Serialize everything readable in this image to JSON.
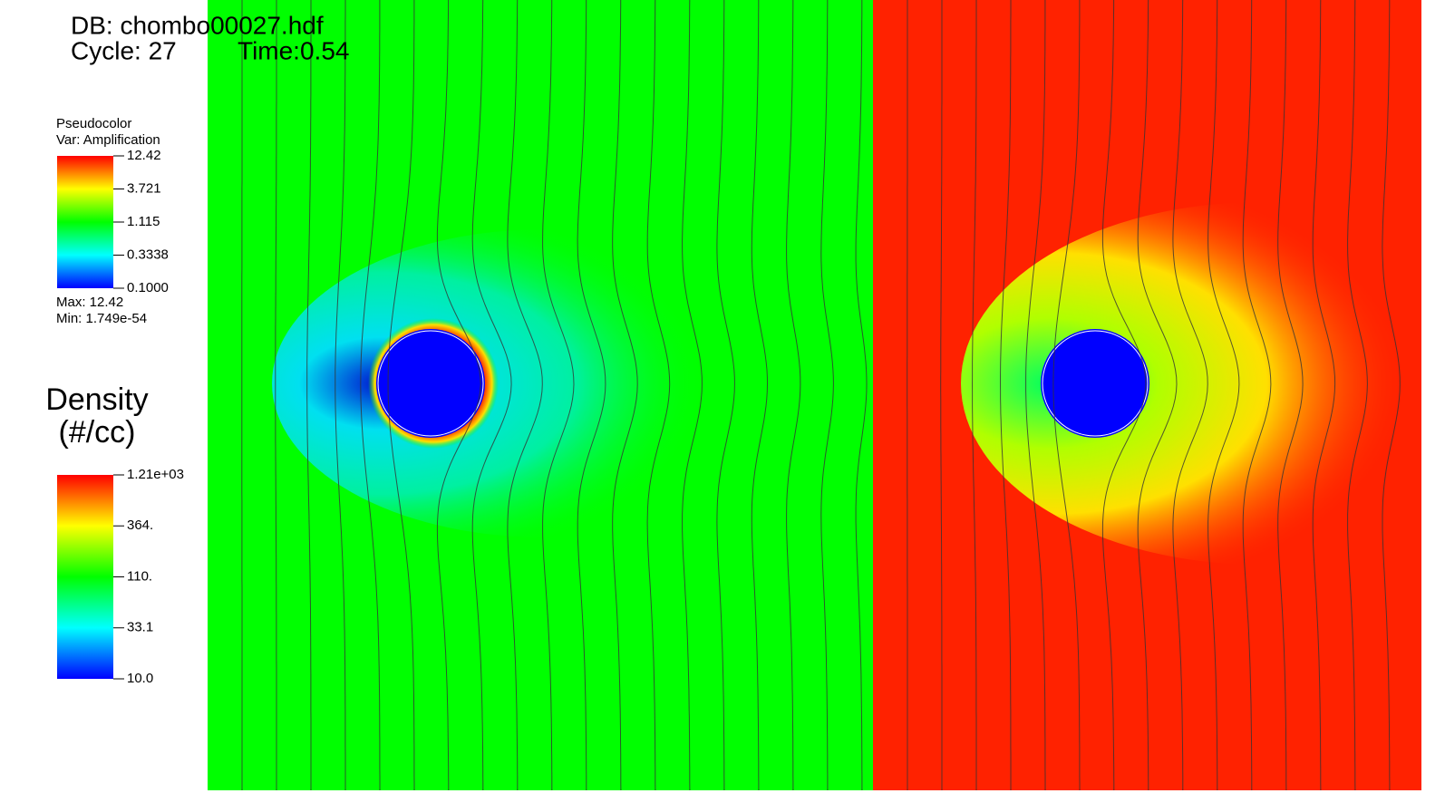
{
  "header": {
    "db": "DB: chombo00027.hdf",
    "cycle": "Cycle: 27",
    "time": "Time:0.54"
  },
  "amplification_legend": {
    "plot": "Pseudocolor",
    "var": "Var: Amplification",
    "ticks": [
      "12.42",
      "3.721",
      "1.115",
      "0.3338",
      "0.1000"
    ],
    "max": "Max:  12.42",
    "min": "Min:  1.749e-54"
  },
  "density_legend": {
    "title": "Density",
    "units": "(#/cc)",
    "ticks": [
      "1.21e+03",
      "364.",
      "110.",
      "33.1",
      "10.0"
    ]
  }
}
